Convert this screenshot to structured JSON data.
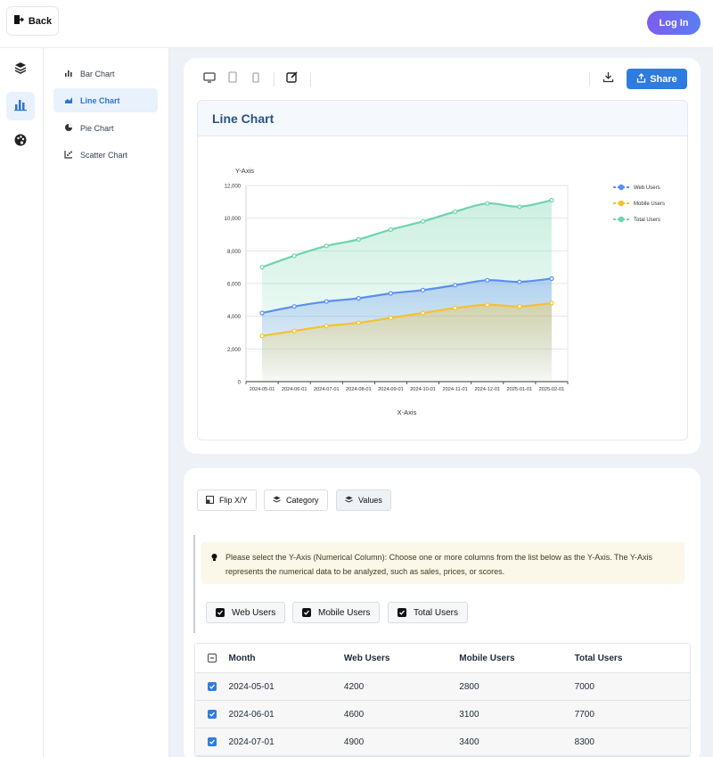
{
  "header": {
    "back_label": "Back",
    "login_label": "Log In"
  },
  "rail": {
    "items": [
      "layers-icon",
      "bar-chart-icon",
      "palette-icon"
    ],
    "active": 1
  },
  "sidenav": {
    "items": [
      {
        "label": "Bar Chart",
        "icon": "bar-chart-icon"
      },
      {
        "label": "Line Chart",
        "icon": "line-chart-icon"
      },
      {
        "label": "Pie Chart",
        "icon": "pie-chart-icon"
      },
      {
        "label": "Scatter Chart",
        "icon": "scatter-chart-icon"
      }
    ],
    "active": 1
  },
  "toolbar": {
    "share_label": "Share"
  },
  "chart_panel": {
    "title": "Line Chart"
  },
  "chart_data": {
    "type": "area",
    "title": "Line Chart",
    "xlabel": "X-Axis",
    "ylabel": "Y-Axis",
    "ylim": [
      0,
      12000
    ],
    "yticks": [
      0,
      2000,
      4000,
      6000,
      8000,
      10000,
      12000
    ],
    "ytick_labels": [
      "0",
      "2,000",
      "4,000",
      "6,000",
      "8,000",
      "10,000",
      "12,000"
    ],
    "grid": true,
    "legend_position": "right",
    "categories": [
      "2024-05-01",
      "2024-06-01",
      "2024-07-01",
      "2024-08-01",
      "2024-09-01",
      "2024-10-01",
      "2024-11-01",
      "2024-12-01",
      "2025-01-01",
      "2025-02-01"
    ],
    "series": [
      {
        "name": "Web Users",
        "color": "#5b8ff0",
        "values": [
          4200,
          4600,
          4900,
          5100,
          5400,
          5600,
          5900,
          6200,
          6100,
          6300
        ]
      },
      {
        "name": "Mobile Users",
        "color": "#f5c22c",
        "values": [
          2800,
          3100,
          3400,
          3600,
          3900,
          4200,
          4500,
          4700,
          4600,
          4800
        ]
      },
      {
        "name": "Total Users",
        "color": "#6fd3ab",
        "values": [
          7000,
          7700,
          8300,
          8700,
          9300,
          9800,
          10400,
          10900,
          10700,
          11100
        ]
      }
    ]
  },
  "controls": {
    "flip_label": "Flip X/Y",
    "category_label": "Category",
    "values_label": "Values",
    "tip_text": "Please select the Y-Axis (Numerical Column): Choose one or more columns from the list below as the Y-Axis. The Y-Axis represents the numerical data to be analyzed, such as sales, prices, or scores.",
    "columns": [
      "Web Users",
      "Mobile Users",
      "Total Users"
    ]
  },
  "table": {
    "headers": [
      "Month",
      "Web Users",
      "Mobile Users",
      "Total Users"
    ],
    "rows": [
      [
        "2024-05-01",
        "4200",
        "2800",
        "7000"
      ],
      [
        "2024-06-01",
        "4600",
        "3100",
        "7700"
      ],
      [
        "2024-07-01",
        "4900",
        "3400",
        "8300"
      ]
    ]
  }
}
